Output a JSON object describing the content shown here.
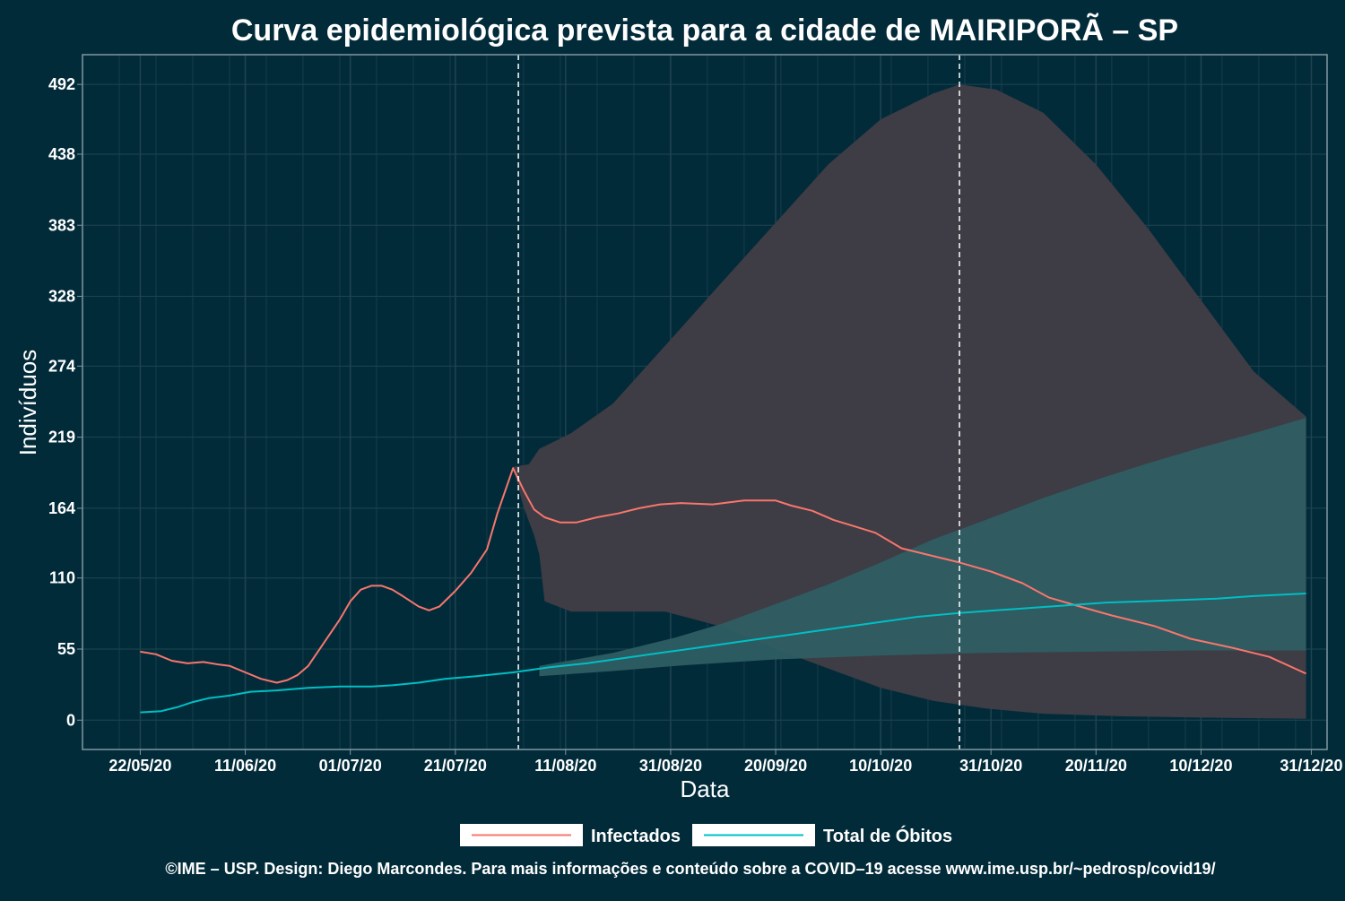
{
  "chart_data": {
    "type": "line",
    "title": "Curva epidemiológica prevista para a cidade de MAIRIPORÃ – SP",
    "xlabel": "Data",
    "ylabel": "Indivíduos",
    "x_ticks": [
      "22/05/20",
      "11/06/20",
      "01/07/20",
      "21/07/20",
      "11/08/20",
      "31/08/20",
      "20/09/20",
      "10/10/20",
      "31/10/20",
      "20/11/20",
      "10/12/20",
      "31/12/20"
    ],
    "y_ticks": [
      "0",
      "55",
      "110",
      "164",
      "219",
      "274",
      "328",
      "383",
      "438",
      "492"
    ],
    "ylim": [
      -22.7,
      515
    ],
    "xlim": [
      "2020-05-11",
      "2021-01-03"
    ],
    "grid": true,
    "legend_position": "bottom",
    "vertical_markers": [
      "2020-08-02",
      "2020-10-25"
    ],
    "series": [
      {
        "name": "Infectados",
        "color": "#f8766d",
        "points": [
          [
            "2020-05-22",
            53
          ],
          [
            "2020-05-25",
            51
          ],
          [
            "2020-05-28",
            46
          ],
          [
            "2020-05-31",
            44
          ],
          [
            "2020-06-03",
            45
          ],
          [
            "2020-06-06",
            43
          ],
          [
            "2020-06-08",
            42
          ],
          [
            "2020-06-11",
            37
          ],
          [
            "2020-06-14",
            32
          ],
          [
            "2020-06-17",
            29
          ],
          [
            "2020-06-19",
            31
          ],
          [
            "2020-06-21",
            35
          ],
          [
            "2020-06-23",
            42
          ],
          [
            "2020-06-26",
            60
          ],
          [
            "2020-06-29",
            78
          ],
          [
            "2020-07-01",
            92
          ],
          [
            "2020-07-03",
            101
          ],
          [
            "2020-07-05",
            104
          ],
          [
            "2020-07-07",
            104
          ],
          [
            "2020-07-09",
            101
          ],
          [
            "2020-07-11",
            96
          ],
          [
            "2020-07-14",
            88
          ],
          [
            "2020-07-16",
            85
          ],
          [
            "2020-07-18",
            88
          ],
          [
            "2020-07-21",
            100
          ],
          [
            "2020-07-24",
            114
          ],
          [
            "2020-07-27",
            132
          ],
          [
            "2020-07-29",
            160
          ],
          [
            "2020-08-01",
            195
          ],
          [
            "2020-08-03",
            178
          ],
          [
            "2020-08-05",
            163
          ],
          [
            "2020-08-07",
            157
          ],
          [
            "2020-08-10",
            153
          ],
          [
            "2020-08-13",
            153
          ],
          [
            "2020-08-17",
            157
          ],
          [
            "2020-08-21",
            160
          ],
          [
            "2020-08-25",
            164
          ],
          [
            "2020-08-29",
            167
          ],
          [
            "2020-09-02",
            168
          ],
          [
            "2020-09-08",
            167
          ],
          [
            "2020-09-14",
            170
          ],
          [
            "2020-09-20",
            170
          ],
          [
            "2020-09-23",
            166
          ],
          [
            "2020-09-27",
            162
          ],
          [
            "2020-10-01",
            155
          ],
          [
            "2020-10-05",
            150
          ],
          [
            "2020-10-09",
            145
          ],
          [
            "2020-10-14",
            133
          ],
          [
            "2020-10-18",
            129
          ],
          [
            "2020-10-25",
            122
          ],
          [
            "2020-10-31",
            115
          ],
          [
            "2020-11-06",
            106
          ],
          [
            "2020-11-11",
            95
          ],
          [
            "2020-11-16",
            89
          ],
          [
            "2020-11-23",
            81
          ],
          [
            "2020-12-01",
            73
          ],
          [
            "2020-12-08",
            63
          ],
          [
            "2020-12-16",
            56
          ],
          [
            "2020-12-23",
            49
          ],
          [
            "2020-12-30",
            36
          ]
        ]
      },
      {
        "name": "Total de Óbitos",
        "color": "#00bfc4",
        "points": [
          [
            "2020-05-22",
            6
          ],
          [
            "2020-05-26",
            7
          ],
          [
            "2020-05-29",
            10
          ],
          [
            "2020-06-01",
            14
          ],
          [
            "2020-06-04",
            17
          ],
          [
            "2020-06-08",
            19
          ],
          [
            "2020-06-12",
            22
          ],
          [
            "2020-06-17",
            23
          ],
          [
            "2020-06-23",
            25
          ],
          [
            "2020-06-29",
            26
          ],
          [
            "2020-07-05",
            26
          ],
          [
            "2020-07-09",
            27
          ],
          [
            "2020-07-14",
            29
          ],
          [
            "2020-07-19",
            32
          ],
          [
            "2020-07-25",
            34
          ],
          [
            "2020-08-01",
            37
          ],
          [
            "2020-08-08",
            41
          ],
          [
            "2020-08-15",
            44
          ],
          [
            "2020-08-22",
            48
          ],
          [
            "2020-08-29",
            52
          ],
          [
            "2020-09-05",
            56
          ],
          [
            "2020-09-12",
            60
          ],
          [
            "2020-09-19",
            64
          ],
          [
            "2020-09-26",
            68
          ],
          [
            "2020-10-03",
            72
          ],
          [
            "2020-10-10",
            76
          ],
          [
            "2020-10-17",
            80
          ],
          [
            "2020-10-25",
            83
          ],
          [
            "2020-11-01",
            85
          ],
          [
            "2020-11-08",
            87
          ],
          [
            "2020-11-15",
            89
          ],
          [
            "2020-11-22",
            91
          ],
          [
            "2020-11-29",
            92
          ],
          [
            "2020-12-06",
            93
          ],
          [
            "2020-12-13",
            94
          ],
          [
            "2020-12-20",
            96
          ],
          [
            "2020-12-30",
            98
          ]
        ]
      }
    ],
    "bands": [
      {
        "series": "Infectados",
        "color": "#3e3c44",
        "upper": [
          [
            "2020-08-01",
            196
          ],
          [
            "2020-08-04",
            198
          ],
          [
            "2020-08-06",
            210
          ],
          [
            "2020-08-12",
            222
          ],
          [
            "2020-08-20",
            245
          ],
          [
            "2020-08-30",
            290
          ],
          [
            "2020-09-10",
            340
          ],
          [
            "2020-09-20",
            385
          ],
          [
            "2020-09-30",
            430
          ],
          [
            "2020-10-10",
            465
          ],
          [
            "2020-10-20",
            485
          ],
          [
            "2020-10-25",
            492
          ],
          [
            "2020-11-01",
            488
          ],
          [
            "2020-11-10",
            470
          ],
          [
            "2020-11-20",
            430
          ],
          [
            "2020-11-30",
            380
          ],
          [
            "2020-12-10",
            325
          ],
          [
            "2020-12-20",
            270
          ],
          [
            "2020-12-30",
            235
          ]
        ],
        "lower": [
          [
            "2020-08-01",
            196
          ],
          [
            "2020-08-03",
            165
          ],
          [
            "2020-08-05",
            143
          ],
          [
            "2020-08-06",
            128
          ],
          [
            "2020-08-07",
            92
          ],
          [
            "2020-08-12",
            84
          ],
          [
            "2020-08-20",
            84
          ],
          [
            "2020-08-30",
            84
          ],
          [
            "2020-09-10",
            72
          ],
          [
            "2020-09-20",
            55
          ],
          [
            "2020-09-30",
            40
          ],
          [
            "2020-10-10",
            25
          ],
          [
            "2020-10-20",
            15
          ],
          [
            "2020-10-30",
            9
          ],
          [
            "2020-11-10",
            5
          ],
          [
            "2020-11-25",
            3
          ],
          [
            "2020-12-10",
            2
          ],
          [
            "2020-12-30",
            1
          ]
        ]
      },
      {
        "series": "Total de Óbitos",
        "color": "#2e5d63",
        "upper": [
          [
            "2020-08-06",
            42
          ],
          [
            "2020-08-20",
            52
          ],
          [
            "2020-09-01",
            64
          ],
          [
            "2020-09-10",
            75
          ],
          [
            "2020-09-20",
            90
          ],
          [
            "2020-09-30",
            105
          ],
          [
            "2020-10-10",
            122
          ],
          [
            "2020-10-20",
            140
          ],
          [
            "2020-10-30",
            155
          ],
          [
            "2020-11-10",
            172
          ],
          [
            "2020-11-20",
            186
          ],
          [
            "2020-11-30",
            199
          ],
          [
            "2020-12-10",
            211
          ],
          [
            "2020-12-20",
            222
          ],
          [
            "2020-12-30",
            234
          ]
        ],
        "lower": [
          [
            "2020-08-06",
            34
          ],
          [
            "2020-08-20",
            38
          ],
          [
            "2020-09-01",
            42
          ],
          [
            "2020-09-20",
            47
          ],
          [
            "2020-10-10",
            50
          ],
          [
            "2020-10-30",
            52
          ],
          [
            "2020-11-20",
            53
          ],
          [
            "2020-12-10",
            54
          ],
          [
            "2020-12-30",
            54
          ]
        ]
      }
    ]
  },
  "legend": [
    {
      "label": "Infectados",
      "color": "#f8766d"
    },
    {
      "label": "Total de Óbitos",
      "color": "#00bfc4"
    }
  ],
  "footer_text": "©IME – USP. Design: Diego Marcondes. Para mais informações e conteúdo sobre a COVID–19 acesse www.ime.usp.br/~pedrosp/covid19/",
  "colors": {
    "background": "#022b3a",
    "grid": "#1f4450",
    "panel_border": "#7f97a0",
    "marker_line": "#ffffff"
  }
}
